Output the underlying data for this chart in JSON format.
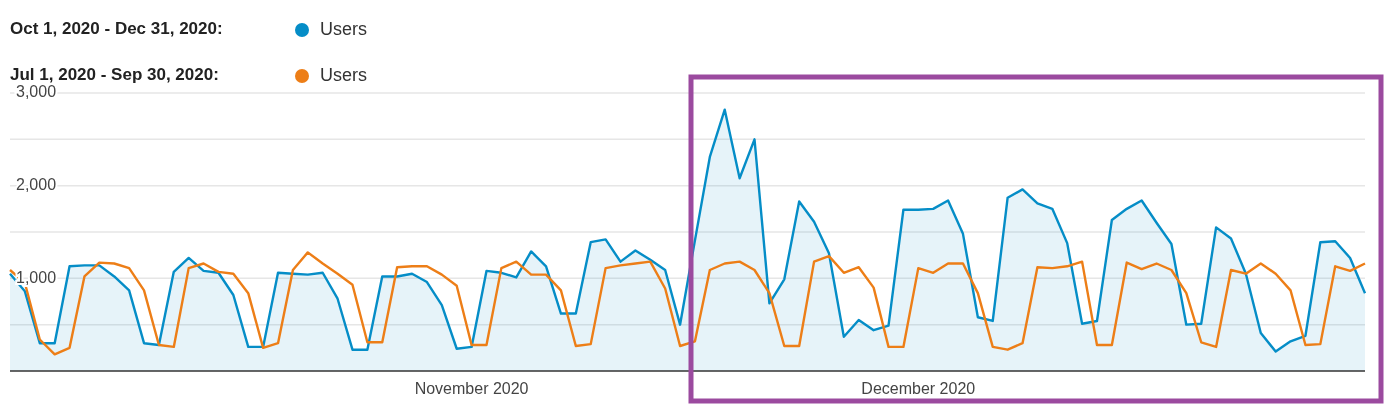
{
  "chart_data": {
    "type": "area",
    "x": [
      "2020-10-01",
      "2020-10-02",
      "2020-10-03",
      "2020-10-04",
      "2020-10-05",
      "2020-10-06",
      "2020-10-07",
      "2020-10-08",
      "2020-10-09",
      "2020-10-10",
      "2020-10-11",
      "2020-10-12",
      "2020-10-13",
      "2020-10-14",
      "2020-10-15",
      "2020-10-16",
      "2020-10-17",
      "2020-10-18",
      "2020-10-19",
      "2020-10-20",
      "2020-10-21",
      "2020-10-22",
      "2020-10-23",
      "2020-10-24",
      "2020-10-25",
      "2020-10-26",
      "2020-10-27",
      "2020-10-28",
      "2020-10-29",
      "2020-10-30",
      "2020-10-31",
      "2020-11-01",
      "2020-11-02",
      "2020-11-03",
      "2020-11-04",
      "2020-11-05",
      "2020-11-06",
      "2020-11-07",
      "2020-11-08",
      "2020-11-09",
      "2020-11-10",
      "2020-11-11",
      "2020-11-12",
      "2020-11-13",
      "2020-11-14",
      "2020-11-15",
      "2020-11-16",
      "2020-11-17",
      "2020-11-18",
      "2020-11-19",
      "2020-11-20",
      "2020-11-21",
      "2020-11-22",
      "2020-11-23",
      "2020-11-24",
      "2020-11-25",
      "2020-11-26",
      "2020-11-27",
      "2020-11-28",
      "2020-11-29",
      "2020-11-30",
      "2020-12-01",
      "2020-12-02",
      "2020-12-03",
      "2020-12-04",
      "2020-12-05",
      "2020-12-06",
      "2020-12-07",
      "2020-12-08",
      "2020-12-09",
      "2020-12-10",
      "2020-12-11",
      "2020-12-12",
      "2020-12-13",
      "2020-12-14",
      "2020-12-15",
      "2020-12-16",
      "2020-12-17",
      "2020-12-18",
      "2020-12-19",
      "2020-12-20",
      "2020-12-21",
      "2020-12-22",
      "2020-12-23",
      "2020-12-24",
      "2020-12-25",
      "2020-12-26",
      "2020-12-27",
      "2020-12-28",
      "2020-12-29",
      "2020-12-30",
      "2020-12-31"
    ],
    "series": [
      {
        "name": "Users",
        "color": "#058dc7",
        "values": [
          1050,
          860,
          300,
          300,
          1130,
          1140,
          1140,
          1020,
          870,
          300,
          280,
          1070,
          1220,
          1080,
          1060,
          820,
          260,
          260,
          1060,
          1050,
          1040,
          1060,
          780,
          230,
          230,
          1020,
          1020,
          1050,
          960,
          710,
          240,
          260,
          1080,
          1060,
          1010,
          1290,
          1130,
          620,
          620,
          1390,
          1420,
          1180,
          1300,
          1200,
          1090,
          500,
          1410,
          2310,
          2820,
          2080,
          2500,
          730,
          990,
          1830,
          1610,
          1270,
          370,
          550,
          440,
          490,
          1740,
          1740,
          1750,
          1840,
          1480,
          580,
          540,
          1870,
          1960,
          1810,
          1750,
          1380,
          510,
          540,
          1630,
          1750,
          1840,
          1600,
          1370,
          500,
          510,
          1550,
          1430,
          1050,
          410,
          210,
          320,
          380,
          1390,
          1400,
          1220,
          840
        ]
      },
      {
        "name": "Users",
        "type": "line",
        "color": "#ed7e17",
        "values": [
          1090,
          950,
          340,
          180,
          250,
          1020,
          1170,
          1160,
          1110,
          870,
          280,
          260,
          1110,
          1160,
          1070,
          1050,
          840,
          250,
          300,
          1090,
          1280,
          1160,
          1050,
          930,
          310,
          310,
          1120,
          1130,
          1130,
          1040,
          920,
          280,
          280,
          1110,
          1180,
          1040,
          1040,
          870,
          270,
          290,
          1110,
          1140,
          1160,
          1180,
          890,
          270,
          320,
          1090,
          1160,
          1180,
          1090,
          840,
          270,
          270,
          1180,
          1240,
          1060,
          1120,
          900,
          260,
          260,
          1110,
          1060,
          1160,
          1160,
          840,
          260,
          230,
          300,
          1120,
          1110,
          1130,
          1180,
          280,
          280,
          1170,
          1100,
          1160,
          1090,
          840,
          310,
          260,
          1090,
          1050,
          1160,
          1050,
          870,
          280,
          290,
          1130,
          1080,
          1160
        ]
      }
    ],
    "xlim": [
      "2020-10-01",
      "2020-12-31"
    ],
    "xticks": [
      {
        "value": "2020-11-01",
        "label": "November 2020"
      },
      {
        "value": "2020-12-01",
        "label": "December 2020"
      }
    ],
    "ylim": [
      0,
      3000
    ],
    "yticks": [
      {
        "value": 500,
        "label": null
      },
      {
        "value": 1000,
        "label": "1,000"
      },
      {
        "value": 1500,
        "label": null
      },
      {
        "value": 2000,
        "label": "2,000"
      },
      {
        "value": 2500,
        "label": null
      },
      {
        "value": 3000,
        "label": "3,000"
      }
    ],
    "grid": "y",
    "legend": "top left",
    "marker": "none",
    "line_style": "solid",
    "annotations": [
      "Oct 1, 2020 - Dec 31, 2020:",
      "Jul 1, 2020 - Sep 30, 2020:"
    ]
  }
}
